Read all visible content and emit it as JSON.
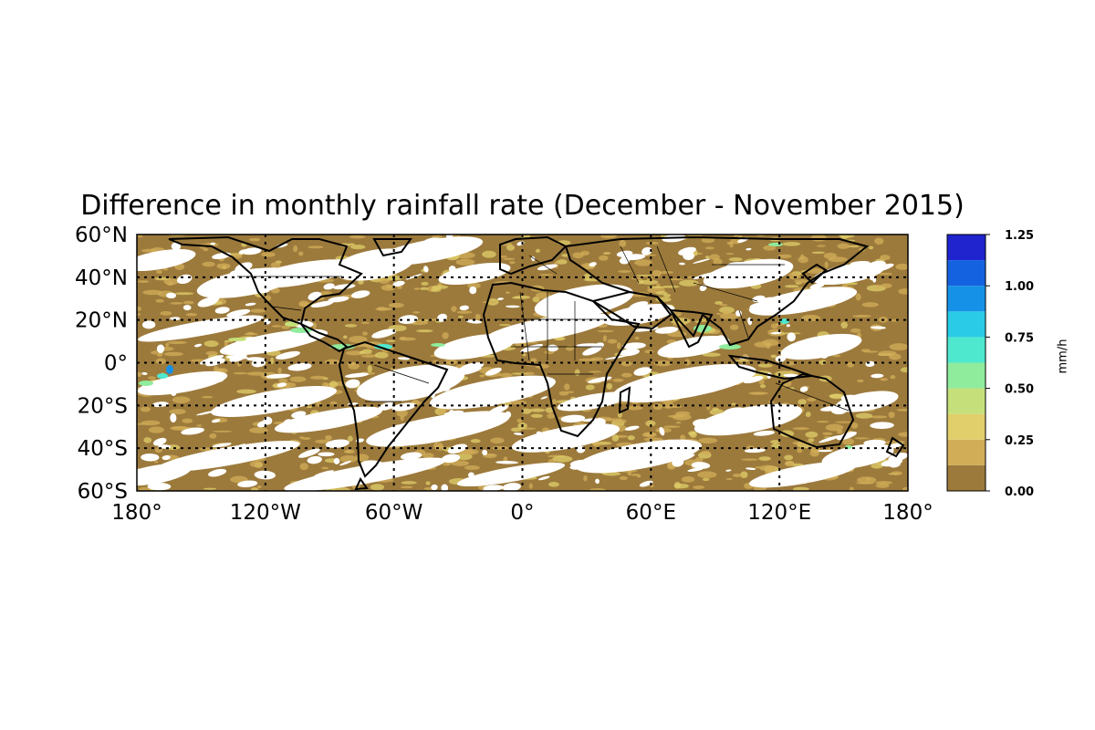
{
  "title": "Difference in monthly rainfall rate (December - November 2015)",
  "map": {
    "lon_labels": [
      "180°",
      "120°W",
      "60°W",
      "0°",
      "60°E",
      "120°E",
      "180°"
    ],
    "lat_labels": [
      "60°N",
      "40°N",
      "20°N",
      "0°",
      "20°S",
      "40°S",
      "60°S"
    ],
    "lon_range": [
      -180,
      180
    ],
    "lat_range": [
      -60,
      60
    ],
    "gridlines": "dotted every 60° longitude and 20° latitude",
    "features": [
      "coastlines",
      "country borders"
    ]
  },
  "colorbar": {
    "label": "mm/h",
    "tick_labels": [
      "0.00",
      "0.25",
      "0.50",
      "0.75",
      "1.00",
      "1.25"
    ],
    "range": [
      0,
      1.25
    ],
    "levels": [
      0,
      0.125,
      0.25,
      0.375,
      0.5,
      0.625,
      0.75,
      0.875,
      1.0,
      1.125,
      1.25
    ],
    "colors": [
      "#9c7a3c",
      "#d1ad58",
      "#e0cf6a",
      "#c5e07a",
      "#8fec9c",
      "#4ee8cf",
      "#29cbe6",
      "#1592e8",
      "#1562e0",
      "#1f24cf"
    ]
  }
}
